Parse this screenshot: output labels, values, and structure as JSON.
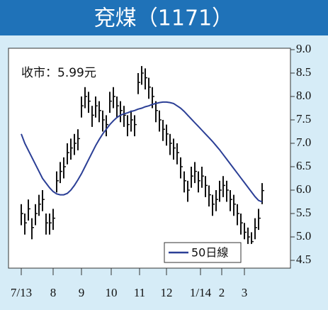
{
  "chart_data": {
    "type": "ohlc",
    "title": "兗煤（1171）",
    "annotation": "收市：5.99元",
    "bar_color": "#111111",
    "high": [
      5.7,
      5.5,
      5.8,
      5.4,
      5.7,
      5.9,
      6.0,
      5.5,
      5.5,
      5.6,
      6.4,
      6.6,
      6.7,
      7.0,
      7.1,
      7.2,
      7.3,
      8.0,
      8.2,
      8.1,
      7.8,
      8.0,
      7.9,
      7.7,
      7.6,
      8.1,
      8.2,
      8.0,
      7.9,
      7.8,
      7.6,
      7.7,
      7.6,
      8.5,
      8.65,
      8.6,
      8.4,
      8.2,
      7.9,
      7.7,
      7.5,
      7.4,
      7.2,
      7.1,
      7.0,
      6.7,
      6.4,
      6.2,
      6.5,
      6.6,
      6.4,
      6.5,
      6.3,
      6.1,
      5.9,
      6.0,
      6.2,
      6.3,
      6.2,
      6.0,
      5.9,
      5.7,
      5.5,
      5.3,
      5.2,
      5.1,
      5.4,
      5.6,
      6.15
    ],
    "low": [
      5.25,
      5.05,
      5.35,
      4.95,
      5.25,
      5.45,
      5.55,
      5.05,
      5.05,
      5.15,
      5.95,
      6.15,
      6.25,
      6.55,
      6.65,
      6.75,
      6.85,
      7.55,
      7.75,
      7.65,
      7.35,
      7.55,
      7.45,
      7.25,
      7.15,
      7.65,
      7.75,
      7.55,
      7.45,
      7.35,
      7.15,
      7.25,
      7.15,
      8.05,
      8.25,
      8.15,
      7.95,
      7.75,
      7.45,
      7.25,
      7.05,
      6.95,
      6.75,
      6.65,
      6.55,
      6.25,
      5.95,
      5.75,
      6.05,
      6.15,
      5.95,
      6.05,
      5.85,
      5.65,
      5.45,
      5.55,
      5.75,
      5.85,
      5.75,
      5.55,
      5.45,
      5.25,
      5.05,
      4.95,
      4.85,
      4.85,
      4.95,
      5.15,
      5.7
    ],
    "close": [
      5.5,
      5.3,
      5.6,
      5.2,
      5.5,
      5.7,
      5.8,
      5.3,
      5.3,
      5.4,
      6.2,
      6.4,
      6.5,
      6.8,
      6.9,
      7.0,
      7.1,
      7.8,
      8.0,
      7.9,
      7.6,
      7.8,
      7.7,
      7.5,
      7.4,
      7.9,
      8.0,
      7.8,
      7.7,
      7.6,
      7.4,
      7.5,
      7.4,
      8.3,
      8.5,
      8.4,
      8.2,
      8.0,
      7.7,
      7.5,
      7.3,
      7.2,
      7.0,
      6.9,
      6.8,
      6.5,
      6.2,
      6.0,
      6.3,
      6.4,
      6.2,
      6.3,
      6.1,
      5.9,
      5.7,
      5.8,
      6.0,
      6.1,
      6.0,
      5.8,
      5.7,
      5.5,
      5.3,
      5.1,
      5.0,
      4.9,
      5.2,
      5.4,
      5.99
    ],
    "series": [
      {
        "name": "50日線",
        "color": "#2b3f96",
        "values": [
          7.2,
          7.0,
          6.85,
          6.7,
          6.55,
          6.4,
          6.25,
          6.15,
          6.05,
          5.97,
          5.92,
          5.9,
          5.9,
          5.93,
          6.0,
          6.1,
          6.22,
          6.35,
          6.5,
          6.65,
          6.8,
          6.95,
          7.08,
          7.2,
          7.3,
          7.4,
          7.48,
          7.55,
          7.6,
          7.63,
          7.65,
          7.68,
          7.7,
          7.73,
          7.75,
          7.78,
          7.8,
          7.83,
          7.85,
          7.87,
          7.88,
          7.88,
          7.87,
          7.85,
          7.8,
          7.75,
          7.68,
          7.6,
          7.52,
          7.44,
          7.36,
          7.28,
          7.2,
          7.12,
          7.04,
          6.95,
          6.86,
          6.76,
          6.66,
          6.56,
          6.46,
          6.36,
          6.26,
          6.16,
          6.06,
          5.96,
          5.86,
          5.78,
          5.75
        ]
      }
    ],
    "xlim": [
      -3.6,
      76
    ],
    "xticks": [
      {
        "value": 0,
        "label": "7/13"
      },
      {
        "value": 9,
        "label": "8"
      },
      {
        "value": 17,
        "label": "9"
      },
      {
        "value": 25.4,
        "label": "10"
      },
      {
        "value": 33.4,
        "label": "11"
      },
      {
        "value": 41,
        "label": "12"
      },
      {
        "value": 50.6,
        "label": "1/14"
      },
      {
        "value": 56.6,
        "label": "2"
      },
      {
        "value": 63,
        "label": "3"
      }
    ],
    "ylim": [
      4.5,
      9.0
    ],
    "yticks": [
      4.5,
      {
        "value": 5.0,
        "label": "5.0"
      },
      5.5,
      {
        "value": 6.0,
        "label": "6.0"
      },
      6.5,
      {
        "value": 7.0,
        "label": "7.0"
      },
      7.5,
      {
        "value": 8.0,
        "label": "8.0"
      },
      8.5,
      {
        "value": 9.0,
        "label": "9.0"
      }
    ]
  }
}
